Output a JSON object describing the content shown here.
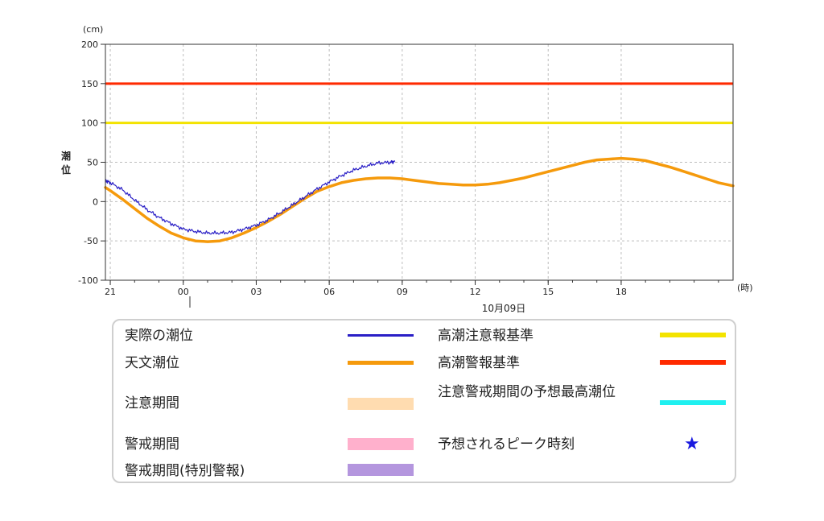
{
  "chart_data": {
    "type": "line",
    "y_unit": "(cm)",
    "x_unit": "(時)",
    "ylabel": "潮位",
    "ylim": [
      -100,
      200
    ],
    "yticks": [
      "200",
      "150",
      "100",
      "50",
      "0",
      "-50",
      "-100"
    ],
    "xticks": [
      "21",
      "00",
      "03",
      "06",
      "09",
      "12",
      "15",
      "18"
    ],
    "date_label": "10月09日",
    "grid": true,
    "legend_position": "bottom",
    "series": [
      {
        "name": "実際の潮位",
        "color": "#2a1fc6",
        "x": [
          -3.2,
          -3.0,
          -2.5,
          -2.0,
          -1.5,
          -1.0,
          -0.5,
          0.0,
          0.5,
          1.0,
          1.5,
          2.0,
          2.5,
          3.0,
          3.5,
          4.0,
          4.5,
          5.0,
          5.5,
          6.0,
          6.5,
          7.0,
          7.5,
          8.0,
          8.5,
          8.7
        ],
        "y": [
          27,
          24,
          15,
          2,
          -10,
          -20,
          -28,
          -35,
          -38,
          -40,
          -40,
          -39,
          -35,
          -30,
          -23,
          -14,
          -4,
          6,
          16,
          25,
          33,
          40,
          45,
          49,
          50,
          51
        ]
      },
      {
        "name": "天文潮位",
        "color": "#f59a0c",
        "x": [
          -3.2,
          -3.0,
          -2.5,
          -2.0,
          -1.5,
          -1.0,
          -0.5,
          0.0,
          0.5,
          1.0,
          1.5,
          2.0,
          2.5,
          3.0,
          3.5,
          4.0,
          4.5,
          5.0,
          5.5,
          6.0,
          6.5,
          7.0,
          7.5,
          8.0,
          8.5,
          9.0,
          9.5,
          10.0,
          10.5,
          11.0,
          11.5,
          12.0,
          12.5,
          13.0,
          13.5,
          14.0,
          14.5,
          15.0,
          15.5,
          16.0,
          16.5,
          17.0,
          17.5,
          18.0,
          18.5,
          19.0,
          19.5,
          20.0,
          20.5,
          21.0,
          21.5,
          22.0,
          22.6
        ],
        "y": [
          18,
          14,
          3,
          -9,
          -21,
          -31,
          -40,
          -46,
          -50,
          -51,
          -50,
          -46,
          -40,
          -33,
          -25,
          -16,
          -6,
          4,
          13,
          19,
          24,
          27,
          29,
          30,
          30,
          29,
          27,
          25,
          23,
          22,
          21,
          21,
          22,
          24,
          27,
          30,
          34,
          38,
          42,
          46,
          50,
          53,
          54,
          55,
          54,
          52,
          48,
          44,
          39,
          34,
          29,
          24,
          20
        ]
      }
    ],
    "thresholds": [
      {
        "name": "高潮注意報基準",
        "value": 100,
        "color": "#f3e300"
      },
      {
        "name": "高潮警報基準",
        "value": 150,
        "color": "#ff2a00"
      }
    ]
  },
  "legend": {
    "actual": "実際の潮位",
    "astro": "天文潮位",
    "caution_period": "注意期間",
    "warning_period": "警戒期間",
    "special_period": "警戒期間(特別警報)",
    "advisory_std": "高潮注意報基準",
    "warning_std": "高潮警報基準",
    "forecast_max": "注意警戒期間の予想最高潮位",
    "peak_time": "予想されるピーク時刻",
    "star": "★",
    "colors": {
      "actual": "#2a1fc6",
      "astro": "#f59a0c",
      "caution": "#ffdcb0",
      "warning": "#ffb0cc",
      "special": "#b496de",
      "advisory": "#f3e300",
      "warning_std": "#ff2a00",
      "forecast": "#1ff0f0",
      "star": "#1a1adf"
    }
  }
}
